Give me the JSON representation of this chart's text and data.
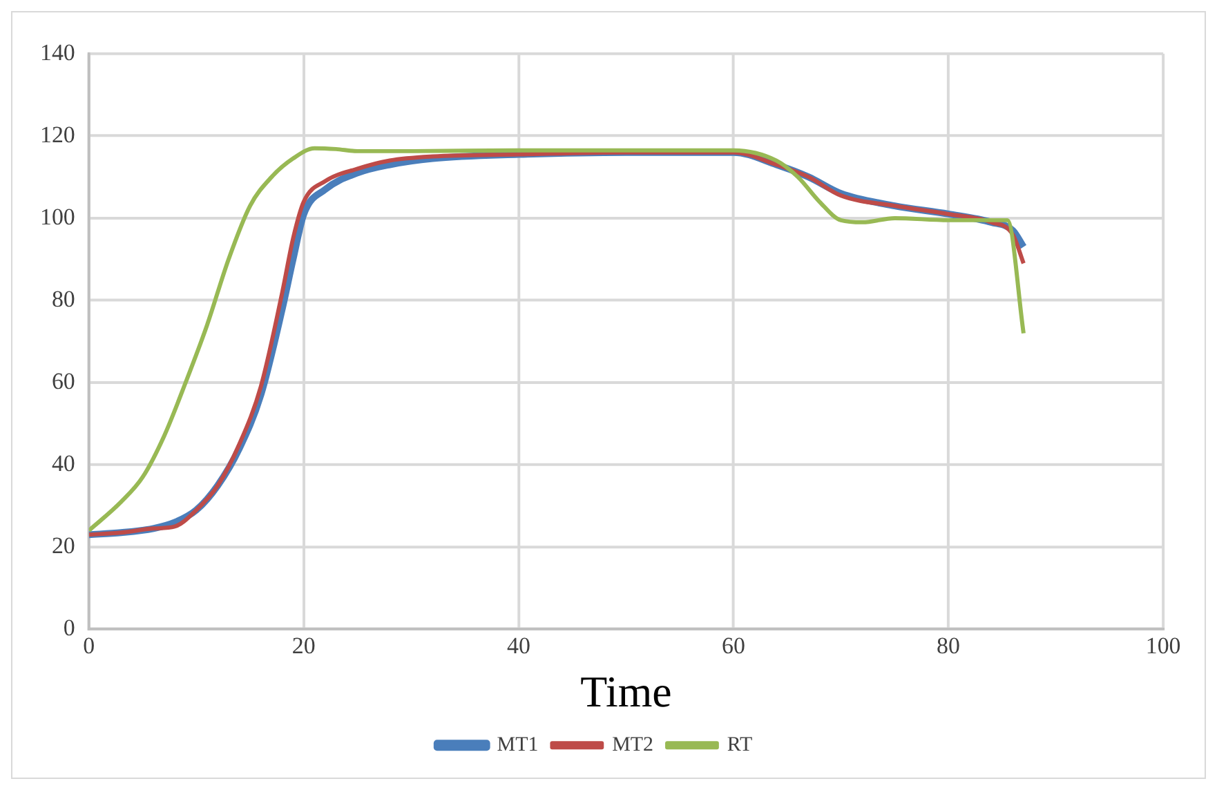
{
  "chart_data": {
    "type": "line",
    "xlabel": "Time",
    "xlim": [
      0,
      100
    ],
    "xticks": [
      0,
      20,
      40,
      60,
      80,
      100
    ],
    "ylim": [
      0,
      140
    ],
    "yticks": [
      0,
      20,
      40,
      60,
      80,
      100,
      120,
      140
    ],
    "grid": true,
    "legend": "bottom",
    "marker": "none",
    "line_style": "solid",
    "series": [
      {
        "name": "MT1",
        "color": "#4a7ebb",
        "x": [
          0,
          3,
          6,
          8,
          10,
          12,
          14,
          16,
          18,
          19,
          20,
          22,
          25,
          28,
          32,
          40,
          50,
          60,
          64,
          67,
          70,
          75,
          80,
          84,
          86,
          87
        ],
        "values": [
          23,
          23.5,
          24.5,
          26,
          29,
          35,
          44,
          57,
          78,
          90,
          101,
          107,
          111,
          113,
          114.5,
          115.5,
          116,
          116,
          113,
          110,
          106,
          103,
          101,
          99,
          97,
          93
        ]
      },
      {
        "name": "MT2",
        "color": "#be4b48",
        "x": [
          0,
          3,
          6,
          8,
          10,
          12,
          14,
          16,
          18,
          19,
          20,
          22,
          25,
          28,
          32,
          40,
          50,
          60,
          64,
          67,
          70,
          75,
          80,
          84,
          86,
          87
        ],
        "values": [
          23,
          23.5,
          24.5,
          25,
          29,
          35,
          45,
          59,
          82,
          95,
          104,
          109,
          112,
          114,
          115,
          115.5,
          116,
          116,
          113,
          110,
          105.5,
          103,
          101,
          99,
          96,
          89
        ]
      },
      {
        "name": "RT",
        "color": "#98b954",
        "x": [
          0,
          3,
          5,
          7,
          9,
          11,
          13,
          15,
          17,
          19,
          21,
          23,
          25,
          30,
          40,
          50,
          60,
          64,
          66,
          68,
          70,
          72,
          75,
          80,
          85.5,
          87
        ],
        "values": [
          24,
          31,
          37,
          47,
          60,
          74,
          90,
          103,
          110,
          114.5,
          117,
          116.8,
          116.3,
          116.3,
          116.5,
          116.5,
          116.5,
          114,
          110,
          104,
          99.5,
          99,
          100,
          99.5,
          99.5,
          72
        ]
      }
    ]
  }
}
